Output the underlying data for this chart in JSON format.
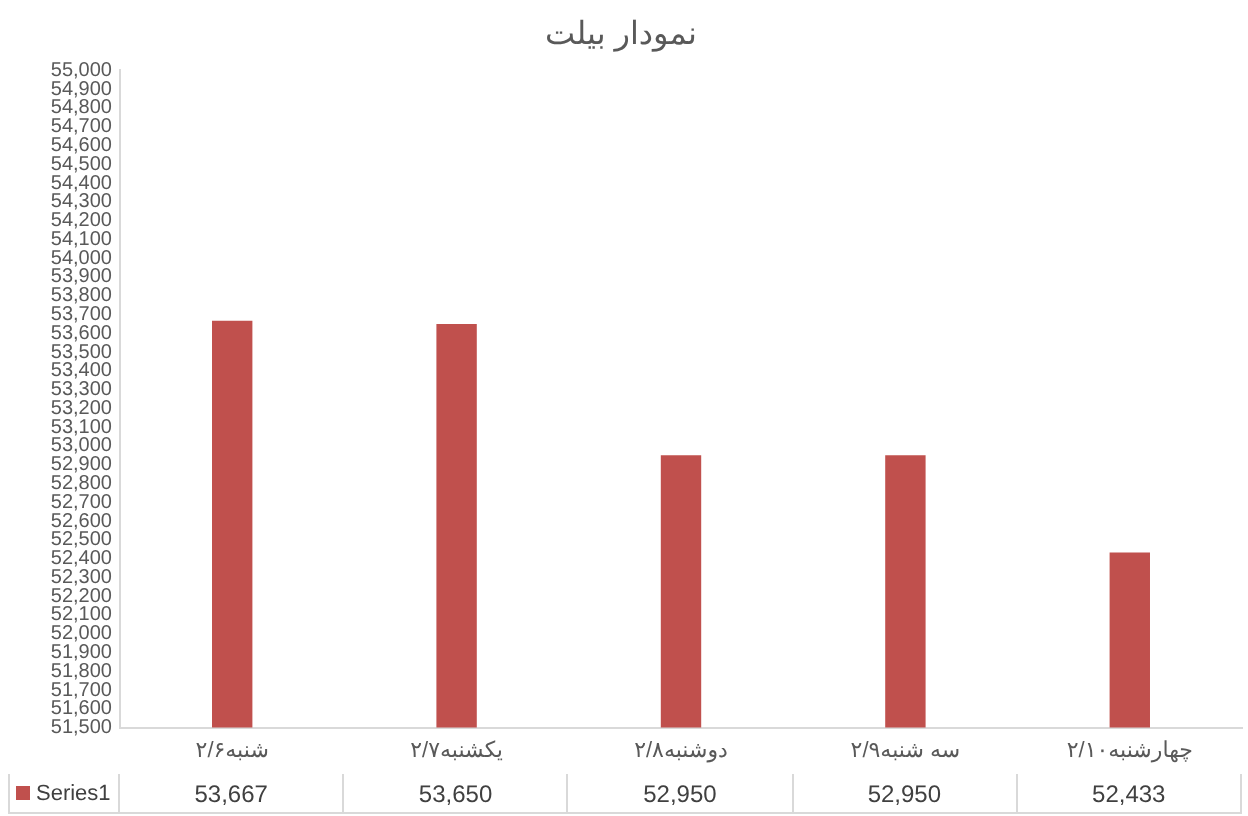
{
  "chart_data": {
    "type": "bar",
    "title": "نمودار بیلت",
    "categories": [
      "شنبه۲/۶",
      "یکشنبه۲/۷",
      "دوشنبه۲/۸",
      "سه شنبه۲/۹",
      "چهارشنبه۲/۱۰"
    ],
    "series": [
      {
        "name": "Series1",
        "color": "#c0504d",
        "values": [
          53667,
          53650,
          52950,
          52950,
          52433
        ],
        "value_labels": [
          "53,667",
          "53,650",
          "52,950",
          "52,950",
          "52,433"
        ]
      }
    ],
    "ylim": [
      51500,
      55000
    ],
    "yticks": [
      {
        "value": 51500,
        "label": "51,500"
      },
      {
        "value": 51600,
        "label": "51,600"
      },
      {
        "value": 51700,
        "label": "51,700"
      },
      {
        "value": 51800,
        "label": "51,800"
      },
      {
        "value": 51900,
        "label": "51,900"
      },
      {
        "value": 52000,
        "label": "52,000"
      },
      {
        "value": 52100,
        "label": "52,100"
      },
      {
        "value": 52200,
        "label": "52,200"
      },
      {
        "value": 52300,
        "label": "52,300"
      },
      {
        "value": 52400,
        "label": "52,400"
      },
      {
        "value": 52500,
        "label": "52,500"
      },
      {
        "value": 52600,
        "label": "52,600"
      },
      {
        "value": 52700,
        "label": "52,700"
      },
      {
        "value": 52800,
        "label": "52,800"
      },
      {
        "value": 52900,
        "label": "52,900"
      },
      {
        "value": 53000,
        "label": "53,000"
      },
      {
        "value": 53100,
        "label": "53,100"
      },
      {
        "value": 53200,
        "label": "53,200"
      },
      {
        "value": 53300,
        "label": "53,300"
      },
      {
        "value": 53400,
        "label": "53,400"
      },
      {
        "value": 53500,
        "label": "53,500"
      },
      {
        "value": 53600,
        "label": "53,600"
      },
      {
        "value": 53700,
        "label": "53,700"
      },
      {
        "value": 53800,
        "label": "53,800"
      },
      {
        "value": 53900,
        "label": "53,900"
      },
      {
        "value": 54000,
        "label": "54,000"
      },
      {
        "value": 54100,
        "label": "54,100"
      },
      {
        "value": 54200,
        "label": "54,200"
      },
      {
        "value": 54300,
        "label": "54,300"
      },
      {
        "value": 54400,
        "label": "54,400"
      },
      {
        "value": 54500,
        "label": "54,500"
      },
      {
        "value": 54600,
        "label": "54,600"
      },
      {
        "value": 54700,
        "label": "54,700"
      },
      {
        "value": 54800,
        "label": "54,800"
      },
      {
        "value": 54900,
        "label": "54,900"
      },
      {
        "value": 55000,
        "label": "55,000"
      }
    ],
    "grid": false,
    "legend": "bottom"
  }
}
